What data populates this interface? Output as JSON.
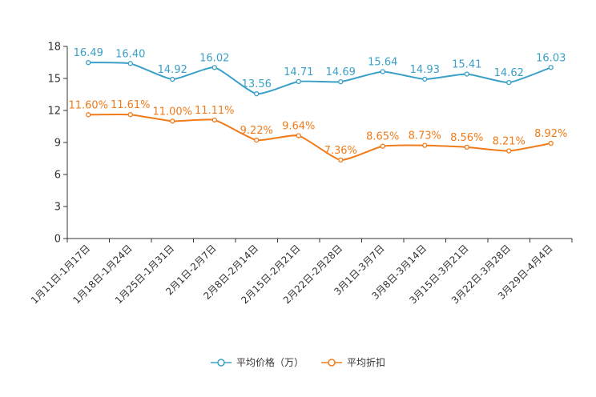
{
  "chart_data": {
    "type": "line",
    "title": "",
    "xlabel": "",
    "ylabel": "",
    "ylim": [
      0,
      18
    ],
    "yticks": [
      0,
      3,
      6,
      9,
      12,
      15,
      18
    ],
    "categories": [
      "1月11日-1月17日",
      "1月18日-1月24日",
      "1月25日-1月31日",
      "2月1日-2月7日",
      "2月8日-2月14日",
      "2月15日-2月21日",
      "2月22日-2月28日",
      "3月1日-3月7日",
      "3月8日-3月14日",
      "3月15日-3月21日",
      "3月22日-3月28日",
      "3月29日-4月4日"
    ],
    "series": [
      {
        "name": "平均价格（万）",
        "color": "#3aa0c8",
        "values": [
          16.49,
          16.4,
          14.92,
          16.02,
          13.56,
          14.71,
          14.69,
          15.64,
          14.93,
          15.41,
          14.62,
          16.03
        ],
        "labels": [
          "16.49",
          "16.40",
          "14.92",
          "16.02",
          "13.56",
          "14.71",
          "14.69",
          "15.64",
          "14.93",
          "15.41",
          "14.62",
          "16.03"
        ]
      },
      {
        "name": "平均折扣",
        "color": "#f07b1a",
        "values": [
          11.6,
          11.61,
          11.0,
          11.11,
          9.22,
          9.64,
          7.36,
          8.65,
          8.73,
          8.56,
          8.21,
          8.92
        ],
        "labels": [
          "11.60%",
          "11.61%",
          "11.00%",
          "11.11%",
          "9.22%",
          "9.64%",
          "7.36%",
          "8.65%",
          "8.73%",
          "8.56%",
          "8.21%",
          "8.92%"
        ]
      }
    ],
    "legend_position": "bottom"
  }
}
